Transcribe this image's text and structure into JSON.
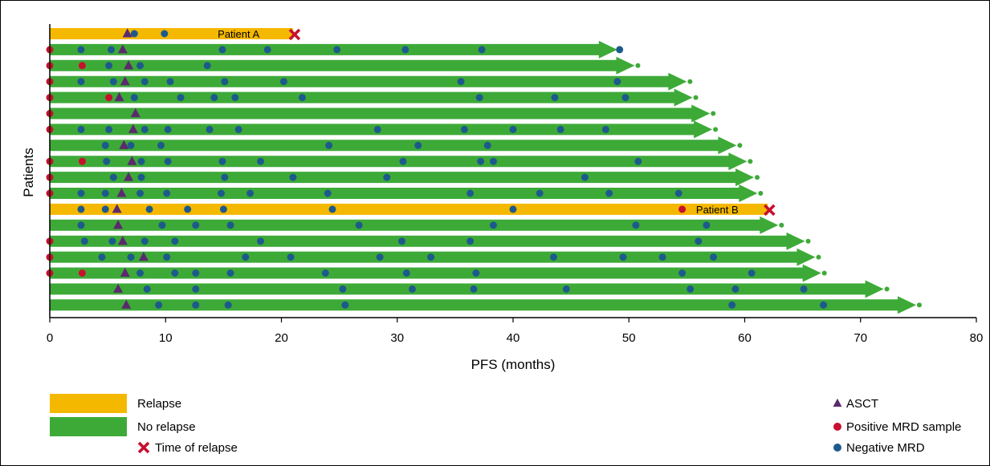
{
  "chart_data": {
    "type": "bar",
    "orientation": "horizontal",
    "xlabel": "PFS (months)",
    "ylabel": "Patients",
    "xlim": [
      0,
      80
    ],
    "xticks": [
      0,
      10,
      20,
      30,
      40,
      50,
      60,
      70,
      80
    ],
    "grid": false,
    "legend": {
      "placement": "bottom",
      "left": [
        {
          "key": "relapse",
          "label": "Relapse",
          "symbol": "bar",
          "color": "#f5b800"
        },
        {
          "key": "no_relapse",
          "label": "No relapse",
          "symbol": "bar",
          "color": "#3daa38"
        },
        {
          "key": "time_of_relapse",
          "label": "Time of relapse",
          "symbol": "cross",
          "color": "#c8102e"
        }
      ],
      "right": [
        {
          "key": "asct",
          "label": "ASCT",
          "symbol": "triangle",
          "color": "#5b2a6e"
        },
        {
          "key": "positive_mrd",
          "label": "Positive MRD sample",
          "symbol": "circle",
          "color": "#c8102e"
        },
        {
          "key": "negative_mrd",
          "label": "Negative MRD",
          "symbol": "circle",
          "color": "#1d5a8c"
        }
      ]
    },
    "colors": {
      "relapse": "#f5b800",
      "no_relapse": "#3daa38",
      "asct": "#5b2a6e",
      "positive_mrd": "#c8102e",
      "negative_mrd": "#1d5a8c",
      "relapse_cross": "#c8102e"
    },
    "patients": [
      {
        "status": "relapse",
        "label": "Patient A",
        "label_at": 14.5,
        "pfs": 21,
        "asct": 6.7,
        "positive": [],
        "negative": [
          7.3,
          9.9
        ]
      },
      {
        "status": "no_relapse",
        "pfs": 49,
        "asct": 6.3,
        "positive": [
          0
        ],
        "negative": [
          2.7,
          5.3,
          14.9,
          18.8,
          24.8,
          30.7,
          37.3,
          49.2
        ]
      },
      {
        "status": "no_relapse",
        "pfs": 50.5,
        "asct": 6.8,
        "positive": [
          0,
          2.8
        ],
        "negative": [
          5.1,
          7.8,
          13.6
        ]
      },
      {
        "status": "no_relapse",
        "pfs": 55,
        "asct": 6.5,
        "positive": [
          0
        ],
        "negative": [
          2.7,
          5.5,
          8.2,
          10.4,
          15.1,
          20.2,
          35.5,
          49.0
        ]
      },
      {
        "status": "no_relapse",
        "pfs": 55.5,
        "asct": 6.0,
        "positive": [
          0,
          5.1
        ],
        "negative": [
          7.3,
          11.3,
          14.2,
          16.0,
          21.8,
          37.1,
          43.6,
          49.7
        ]
      },
      {
        "status": "no_relapse",
        "pfs": 57,
        "asct": 7.4,
        "positive": [
          0
        ],
        "negative": []
      },
      {
        "status": "no_relapse",
        "pfs": 57.2,
        "asct": 7.2,
        "positive": [
          0
        ],
        "negative": [
          2.7,
          5.1,
          8.2,
          10.2,
          13.8,
          16.3,
          28.3,
          35.8,
          40.0,
          44.1,
          48.0
        ]
      },
      {
        "status": "no_relapse",
        "pfs": 59.3,
        "asct": 6.4,
        "positive": [],
        "negative": [
          4.8,
          7.0,
          9.6,
          24.1,
          31.8,
          37.8
        ]
      },
      {
        "status": "no_relapse",
        "pfs": 60.2,
        "asct": 7.1,
        "positive": [
          0,
          2.8
        ],
        "negative": [
          4.9,
          7.9,
          10.2,
          14.9,
          18.2,
          30.5,
          37.2,
          38.3,
          50.8
        ]
      },
      {
        "status": "no_relapse",
        "pfs": 60.8,
        "asct": 6.8,
        "positive": [
          0
        ],
        "negative": [
          5.5,
          7.9,
          15.1,
          21.0,
          29.1,
          46.2
        ]
      },
      {
        "status": "no_relapse",
        "pfs": 61.1,
        "asct": 6.2,
        "positive": [
          0
        ],
        "negative": [
          2.7,
          4.8,
          7.8,
          10.1,
          14.8,
          17.3,
          24.0,
          36.3,
          42.3,
          48.3,
          54.3
        ]
      },
      {
        "status": "relapse",
        "label": "Patient B",
        "label_at": 55.8,
        "pfs": 62,
        "asct": 5.8,
        "positive": [
          54.6
        ],
        "negative": [
          2.7,
          4.8,
          8.6,
          11.9,
          15.0,
          24.4,
          40.0
        ]
      },
      {
        "status": "no_relapse",
        "pfs": 62.9,
        "asct": 5.9,
        "positive": [],
        "negative": [
          2.7,
          9.7,
          12.6,
          15.6,
          26.7,
          38.3,
          50.6,
          56.7
        ]
      },
      {
        "status": "no_relapse",
        "pfs": 65.2,
        "asct": 6.3,
        "positive": [
          0
        ],
        "negative": [
          3.0,
          5.4,
          8.2,
          10.8,
          18.2,
          30.4,
          36.3,
          56.0
        ]
      },
      {
        "status": "no_relapse",
        "pfs": 66.1,
        "asct": 8.1,
        "positive": [
          0
        ],
        "negative": [
          4.5,
          7.0,
          10.1,
          16.9,
          20.8,
          28.5,
          32.9,
          43.5,
          49.5,
          52.9,
          57.3
        ]
      },
      {
        "status": "no_relapse",
        "pfs": 66.6,
        "asct": 6.5,
        "positive": [
          0,
          2.8
        ],
        "negative": [
          7.8,
          10.8,
          12.6,
          15.6,
          23.8,
          30.8,
          36.8,
          54.6,
          60.6
        ]
      },
      {
        "status": "no_relapse",
        "pfs": 72,
        "asct": 5.9,
        "positive": [],
        "negative": [
          8.4,
          12.6,
          25.3,
          31.3,
          36.6,
          44.6,
          55.3,
          59.2,
          65.1
        ]
      },
      {
        "status": "no_relapse",
        "pfs": 74.8,
        "asct": 6.6,
        "positive": [],
        "negative": [
          9.4,
          12.6,
          15.4,
          25.5,
          58.9,
          66.8
        ]
      }
    ]
  }
}
